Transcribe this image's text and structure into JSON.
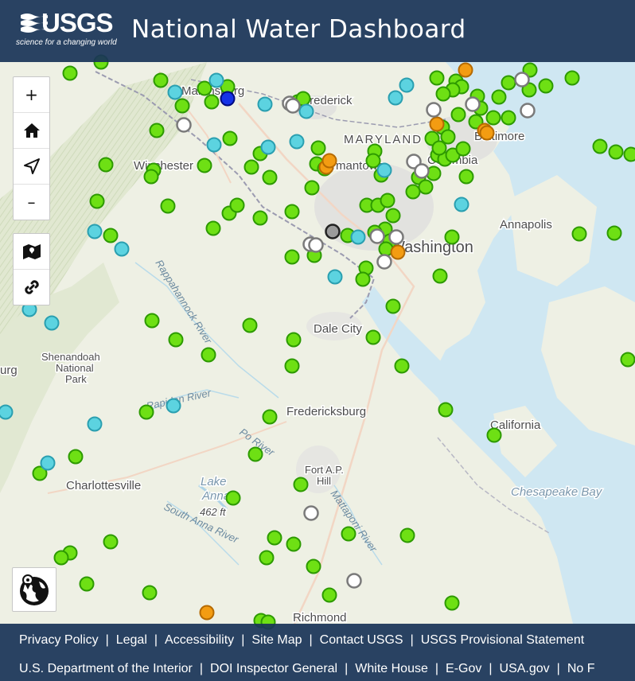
{
  "header": {
    "logo_text": "USGS",
    "logo_tagline": "science for a changing world",
    "title": "National Water Dashboard"
  },
  "map_controls": {
    "zoom_in": "+",
    "zoom_out": "–",
    "home_icon": "home-icon",
    "locate_icon": "locate-arrow-icon",
    "layers_icon": "map-layers-icon",
    "share_icon": "link-icon",
    "basemap_icon": "globe-icon"
  },
  "map": {
    "place_labels": [
      {
        "text": "Martinsburg",
        "size": "m",
        "bold": false
      },
      {
        "text": "Frederick",
        "size": "m",
        "bold": false
      },
      {
        "text": "MARYLAND",
        "size": "m",
        "bold": false,
        "spaced": true
      },
      {
        "text": "Baltimore",
        "size": "m",
        "bold": false
      },
      {
        "text": "Winchester",
        "size": "m",
        "bold": false
      },
      {
        "text": "Germantown",
        "size": "m",
        "bold": false
      },
      {
        "text": "Columbia",
        "size": "m",
        "bold": false
      },
      {
        "text": "Annapolis",
        "size": "m",
        "bold": false
      },
      {
        "text": "Washington",
        "size": "l",
        "bold": false
      },
      {
        "text": "Dale City",
        "size": "m",
        "bold": false
      },
      {
        "text": "Shenandoah",
        "size": "s",
        "bold": false
      },
      {
        "text": "National",
        "size": "s",
        "bold": false
      },
      {
        "text": "Park",
        "size": "s",
        "bold": false
      },
      {
        "text": "urg",
        "size": "m",
        "bold": false
      },
      {
        "text": "Fredericksburg",
        "size": "m",
        "bold": false
      },
      {
        "text": "California",
        "size": "m",
        "bold": false
      },
      {
        "text": "Fort A.P.",
        "size": "s",
        "bold": false
      },
      {
        "text": "Hill",
        "size": "s",
        "bold": false
      },
      {
        "text": "Charlottesville",
        "size": "m",
        "bold": false
      },
      {
        "text": "Chesapeake Bay",
        "size": "m",
        "bold": false,
        "water": true
      },
      {
        "text": "Lake",
        "size": "m",
        "bold": false,
        "water": true
      },
      {
        "text": "Anna",
        "size": "m",
        "bold": false,
        "water": true
      },
      {
        "text": "462 ft",
        "size": "s",
        "bold": false,
        "italic": true
      },
      {
        "text": "Richmond",
        "size": "m",
        "bold": false
      }
    ],
    "river_labels": [
      {
        "text": "Rappahannock River"
      },
      {
        "text": "Rapidan River"
      },
      {
        "text": "Po River"
      },
      {
        "text": "South Anna River"
      },
      {
        "text": "Mattaponi River"
      }
    ],
    "legend_colors": {
      "green": "#6ee014",
      "cyan": "#5cd3e0",
      "orange": "#f39c12",
      "white": "#ffffff",
      "gray": "#9b9b9b",
      "blue": "#1532e8"
    }
  },
  "footer": {
    "row1": [
      "Privacy Policy",
      "Legal",
      "Accessibility",
      "Site Map",
      "Contact USGS",
      "USGS Provisional Statement"
    ],
    "row2": [
      "U.S. Department of the Interior",
      "DOI Inspector General",
      "White House",
      "E-Gov",
      "USA.gov",
      "No F"
    ]
  }
}
